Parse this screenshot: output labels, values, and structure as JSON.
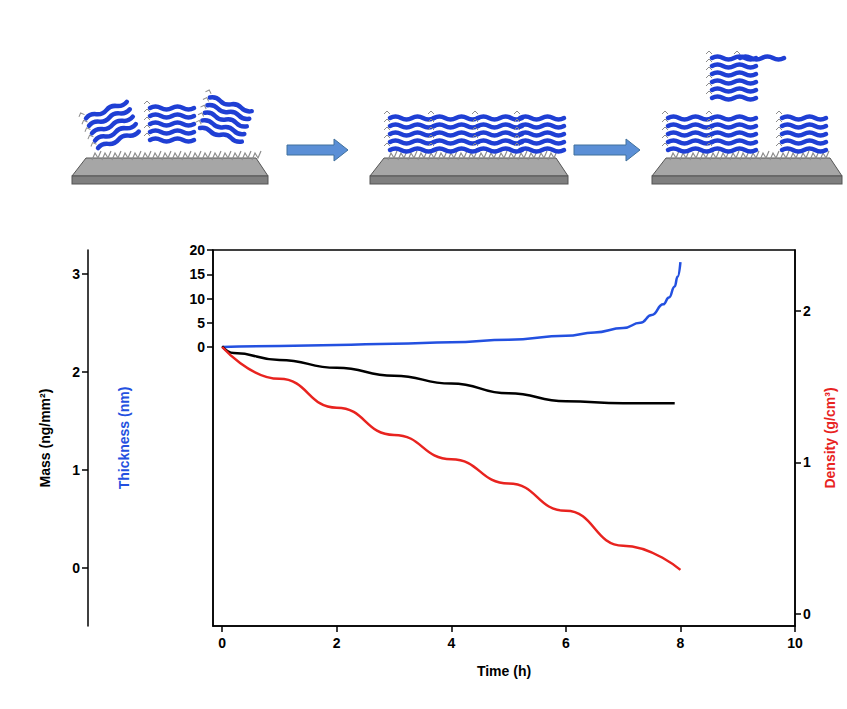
{
  "chart_data": {
    "type": "line",
    "x_label": "Time (h)",
    "y_label": "Thickness (nm)",
    "y2_label": "Density (g/cm³)",
    "y3_label": "Mass (ng/mm²)",
    "xlim": [
      -0.16,
      10
    ],
    "xticks": [
      0,
      2,
      4,
      6,
      8,
      10
    ],
    "ylim": [
      -57.5,
      20
    ],
    "yticks": [
      0,
      5,
      10,
      15,
      20
    ],
    "y2lim": [
      -0.08,
      2.4
    ],
    "y2ticks": [
      0,
      1,
      2
    ],
    "y3lim": [
      -0.59,
      3.24
    ],
    "y3ticks": [
      0,
      1,
      2,
      3
    ],
    "grid": false,
    "series": [
      {
        "axis": "y",
        "color": "#2350e0",
        "x": [
          0,
          1,
          2,
          3,
          4,
          5,
          6,
          6.5,
          7,
          7.3,
          7.5,
          7.7,
          7.8,
          7.9,
          7.95,
          8.0
        ],
        "values": [
          0,
          0.2,
          0.4,
          0.7,
          1.0,
          1.5,
          2.3,
          3.0,
          3.9,
          5.0,
          6.6,
          8.8,
          10.2,
          12.5,
          14.5,
          17.5
        ]
      },
      {
        "axis": "y3",
        "color": "#000000",
        "x": [
          0,
          0.2,
          1,
          2,
          3,
          4,
          5,
          6,
          7,
          7.9
        ],
        "values": [
          2.26,
          2.19,
          2.12,
          2.04,
          1.96,
          1.88,
          1.78,
          1.7,
          1.68,
          1.68
        ]
      },
      {
        "axis": "y2",
        "color": "#e8231f",
        "x": [
          0,
          1,
          2,
          3,
          4,
          5,
          6,
          7,
          8
        ],
        "values": [
          1.76,
          1.55,
          1.36,
          1.18,
          1.02,
          0.86,
          0.68,
          0.45,
          0.29
        ]
      }
    ]
  }
}
